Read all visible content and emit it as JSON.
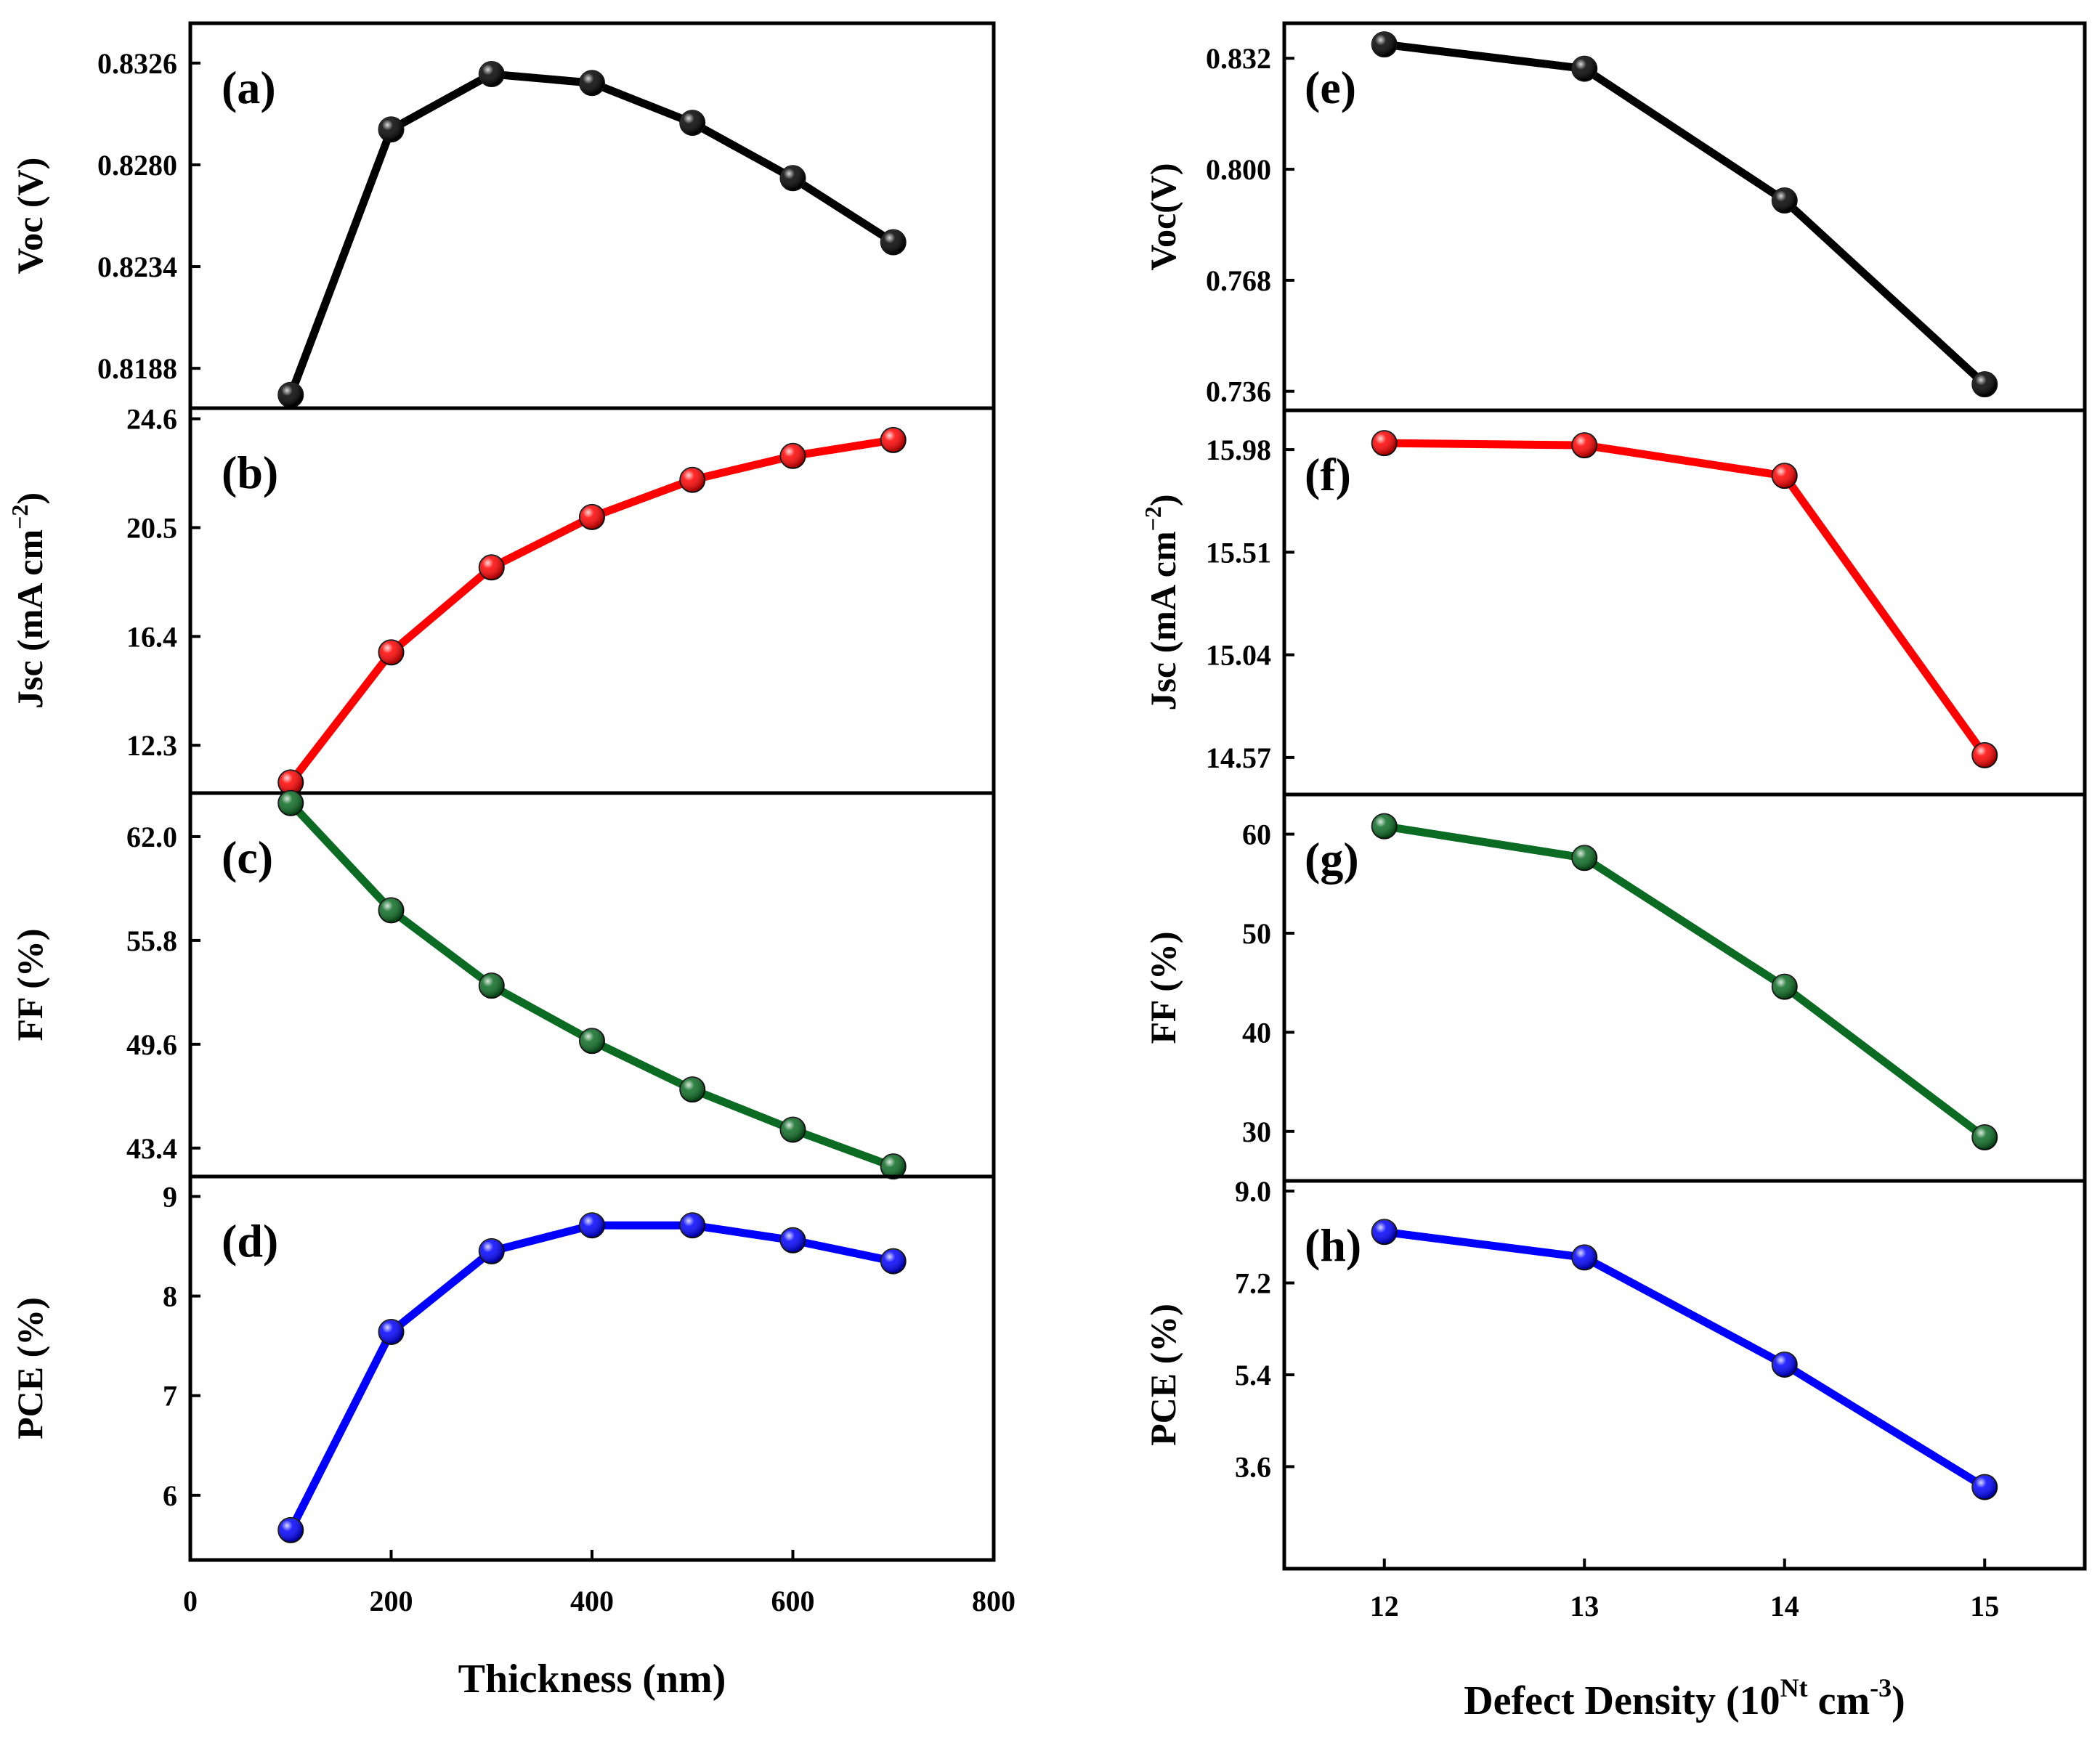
{
  "chart_data": [
    {
      "group": "left",
      "type": "line",
      "title": "",
      "xlabel": "Thickness (nm)",
      "xlim": [
        0,
        800
      ],
      "xticks": [
        0,
        200,
        400,
        600,
        800
      ],
      "xtick_labels": [
        "0",
        "200",
        "400",
        "600",
        "800"
      ],
      "x": [
        100,
        200,
        300,
        400,
        500,
        600,
        700
      ],
      "panels": [
        {
          "tag": "(a)",
          "ylabel": "Voc (V)",
          "ylim": [
            0.817,
            0.8344
          ],
          "yticks": [
            0.8188,
            0.8234,
            0.828,
            0.8326
          ],
          "ytick_labels": [
            "0.8188",
            "0.8234",
            "0.8280",
            "0.8326"
          ],
          "color": "#000000",
          "name": "Voc",
          "values": [
            0.8176,
            0.8296,
            0.8321,
            0.8317,
            0.8299,
            0.8274,
            0.8245
          ]
        },
        {
          "tag": "(b)",
          "ylabel": "Jsc (mA cm",
          "ylabel_sup": "−2",
          "ylabel_end": ")",
          "ylim": [
            10.5,
            25.0
          ],
          "yticks": [
            12.3,
            16.4,
            20.5,
            24.6
          ],
          "ytick_labels": [
            "12.3",
            "16.4",
            "20.5",
            "24.6"
          ],
          "color": "#ff0000",
          "name": "Jsc",
          "values": [
            10.9,
            15.8,
            19.0,
            20.9,
            22.3,
            23.2,
            23.8
          ]
        },
        {
          "tag": "(c)",
          "ylabel": "FF (%)",
          "ylim": [
            41.7,
            64.6
          ],
          "yticks": [
            43.4,
            49.6,
            55.8,
            62.0
          ],
          "ytick_labels": [
            "43.4",
            "49.6",
            "55.8",
            "62.0"
          ],
          "color": "#0b6b23",
          "name": "FF",
          "values": [
            64.0,
            57.6,
            53.1,
            49.8,
            46.9,
            44.5,
            42.3
          ]
        },
        {
          "tag": "(d)",
          "ylabel": "PCE (%)",
          "ylim": [
            5.35,
            9.2
          ],
          "yticks": [
            6,
            7,
            8,
            9
          ],
          "ytick_labels": [
            "6",
            "7",
            "8",
            "9"
          ],
          "color": "#0000ff",
          "name": "PCE",
          "values": [
            5.65,
            7.64,
            8.45,
            8.71,
            8.71,
            8.56,
            8.35
          ]
        }
      ]
    },
    {
      "group": "right",
      "type": "line",
      "title": "",
      "xlabel": "Defect Density (10",
      "xlabel_sup": "Nt",
      "xlabel_end": " cm",
      "xlabel_sup2": "-3",
      "xlabel_close": ")",
      "xlim": [
        11.5,
        15.5
      ],
      "xticks": [
        12,
        13,
        14,
        15
      ],
      "xtick_labels": [
        "12",
        "13",
        "14",
        "15"
      ],
      "x": [
        12,
        13,
        14,
        15
      ],
      "panels": [
        {
          "tag": "(e)",
          "ylabel": "Voc(V)",
          "ylim": [
            0.7305,
            0.8421
          ],
          "yticks": [
            0.736,
            0.768,
            0.8,
            0.832
          ],
          "ytick_labels": [
            "0.736",
            "0.768",
            "0.800",
            "0.832"
          ],
          "color": "#000000",
          "name": "Voc",
          "values": [
            0.836,
            0.829,
            0.791,
            0.738
          ]
        },
        {
          "tag": "(f)",
          "ylabel": "Jsc (mA cm",
          "ylabel_sup": "−2",
          "ylabel_end": ")",
          "ylim": [
            14.4,
            16.16
          ],
          "yticks": [
            14.57,
            15.04,
            15.51,
            15.98
          ],
          "ytick_labels": [
            "14.57",
            "15.04",
            "15.51",
            "15.98"
          ],
          "color": "#ff0000",
          "name": "Jsc",
          "values": [
            16.01,
            16.0,
            15.86,
            14.58
          ]
        },
        {
          "tag": "(g)",
          "ylabel": "FF (%)",
          "ylim": [
            25.0,
            64.0
          ],
          "yticks": [
            30,
            40,
            50,
            60
          ],
          "ytick_labels": [
            "30",
            "40",
            "50",
            "60"
          ],
          "color": "#0b6b23",
          "name": "FF",
          "values": [
            60.8,
            57.6,
            44.6,
            29.4
          ]
        },
        {
          "tag": "(h)",
          "ylabel": "PCE (%)",
          "ylim": [
            1.6,
            9.2
          ],
          "yticks": [
            3.6,
            5.4,
            7.2,
            9.0
          ],
          "ytick_labels": [
            "3.6",
            "5.4",
            "7.2",
            "9.0"
          ],
          "color": "#0000ff",
          "name": "PCE",
          "values": [
            8.2,
            7.7,
            5.6,
            3.2
          ]
        }
      ]
    }
  ]
}
